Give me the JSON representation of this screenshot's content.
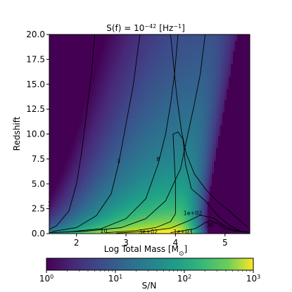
{
  "chart_data": {
    "type": "heatmap",
    "title_base": "S(f) = 10",
    "title_exp": "−42",
    "title_unit": "[Hz",
    "title_unit_exp": "−1",
    "title_close": "]",
    "xlabel_base": "Log Total Mass [M",
    "xlabel_sub": "⊙",
    "xlabel_close": "]",
    "ylabel": "Redshift",
    "xlim": [
      1.45,
      5.5
    ],
    "ylim": [
      0,
      20
    ],
    "x_ticks": [
      2,
      3,
      4,
      5
    ],
    "x_tick_labels": [
      "2",
      "3",
      "4",
      "5"
    ],
    "y_ticks": [
      0,
      2.5,
      5,
      7.5,
      10,
      12.5,
      15,
      17.5,
      20
    ],
    "y_tick_labels": [
      "0.0",
      "2.5",
      "5.0",
      "7.5",
      "10.0",
      "12.5",
      "15.0",
      "17.5",
      "20.0"
    ],
    "colorbar": {
      "label": "S/N",
      "scale": "log",
      "range": [
        1,
        1000
      ],
      "ticks": [
        1,
        10,
        100,
        1000
      ],
      "tick_base": "10",
      "tick_exponents": [
        "0",
        "1",
        "2",
        "3"
      ],
      "colormap": "viridis"
    },
    "contours": [
      {
        "level": 1,
        "label": "1",
        "label_at": [
          1.45,
          3.0
        ],
        "points": [
          [
            1.42,
            0.35
          ],
          [
            1.6,
            0.8
          ],
          [
            1.85,
            2.3
          ],
          [
            2.0,
            5.0
          ],
          [
            2.1,
            8.0
          ],
          [
            2.2,
            12.0
          ],
          [
            2.3,
            16.0
          ],
          [
            2.37,
            20.0
          ]
        ]
      },
      {
        "level": 3,
        "label": "3",
        "label_at": [
          2.85,
          7.3
        ],
        "points": [
          [
            1.5,
            0.2
          ],
          [
            2.0,
            0.6
          ],
          [
            2.4,
            1.8
          ],
          [
            2.7,
            4.0
          ],
          [
            2.85,
            7.0
          ],
          [
            3.0,
            11.0
          ],
          [
            3.15,
            15.0
          ],
          [
            3.28,
            20.0
          ]
        ]
      },
      {
        "level": 8,
        "label": "8",
        "label_at": [
          3.65,
          7.5
        ],
        "points": [
          [
            1.8,
            0.15
          ],
          [
            2.5,
            0.5
          ],
          [
            3.0,
            1.5
          ],
          [
            3.4,
            3.5
          ],
          [
            3.65,
            7.0
          ],
          [
            3.8,
            10.0
          ],
          [
            3.9,
            13.0
          ],
          [
            3.98,
            16.0
          ],
          [
            4.05,
            20.0
          ]
        ]
      },
      {
        "level": 10,
        "label": "10",
        "label_at": [
          2.55,
          0.3
        ],
        "points": [
          [
            1.45,
            0.1
          ],
          [
            2.2,
            0.25
          ],
          [
            2.9,
            0.6
          ],
          [
            3.4,
            1.5
          ],
          [
            3.8,
            3.3
          ],
          [
            4.1,
            6.5
          ],
          [
            4.25,
            10.0
          ],
          [
            4.38,
            13.0
          ],
          [
            4.5,
            16.0
          ],
          [
            4.6,
            20.0
          ]
        ]
      },
      {
        "level": 30,
        "label": "30",
        "label_at": [
          4.7,
          0.9
        ],
        "points": [
          [
            3.9,
            20.0
          ],
          [
            4.02,
            14.0
          ],
          [
            4.12,
            10.3
          ],
          [
            4.22,
            8.0
          ],
          [
            4.38,
            6.0
          ],
          [
            4.6,
            4.5
          ],
          [
            4.85,
            3.2
          ],
          [
            5.1,
            2.2
          ],
          [
            5.28,
            1.4
          ],
          [
            5.45,
            0.7
          ]
        ]
      },
      {
        "level": 100,
        "label": "1e+02",
        "label_at": [
          4.35,
          2.1
        ],
        "points": [
          [
            2.6,
            0.1
          ],
          [
            3.2,
            0.3
          ],
          [
            3.6,
            0.6
          ],
          [
            3.9,
            1.2
          ],
          [
            4.0,
            2.0
          ],
          [
            4.0,
            5.0
          ],
          [
            3.97,
            8.0
          ],
          [
            3.95,
            10.0
          ],
          [
            4.05,
            10.2
          ],
          [
            4.15,
            9.5
          ],
          [
            4.2,
            7.0
          ],
          [
            4.32,
            4.5
          ],
          [
            4.6,
            3.3
          ],
          [
            4.85,
            1.8
          ],
          [
            5.1,
            0.8
          ],
          [
            5.3,
            0.3
          ]
        ]
      },
      {
        "level": 300,
        "label": "3e+02",
        "label_at": [
          3.45,
          0.2
        ],
        "points": [
          [
            2.8,
            0.05
          ],
          [
            3.4,
            0.22
          ],
          [
            3.9,
            0.55
          ],
          [
            4.25,
            1.25
          ],
          [
            4.5,
            1.85
          ],
          [
            4.75,
            1.6
          ],
          [
            4.95,
            0.9
          ],
          [
            5.15,
            0.4
          ],
          [
            5.45,
            0.15
          ]
        ]
      },
      {
        "level": 1000,
        "label": "1e+03",
        "label_at": [
          4.15,
          0.22
        ],
        "points": [
          [
            3.9,
            0.1
          ],
          [
            4.4,
            0.5
          ],
          [
            4.6,
            1.1
          ],
          [
            4.7,
            1.3
          ],
          [
            4.85,
            1.0
          ],
          [
            5.0,
            0.5
          ],
          [
            5.2,
            0.25
          ],
          [
            5.5,
            0.15
          ]
        ]
      }
    ]
  }
}
